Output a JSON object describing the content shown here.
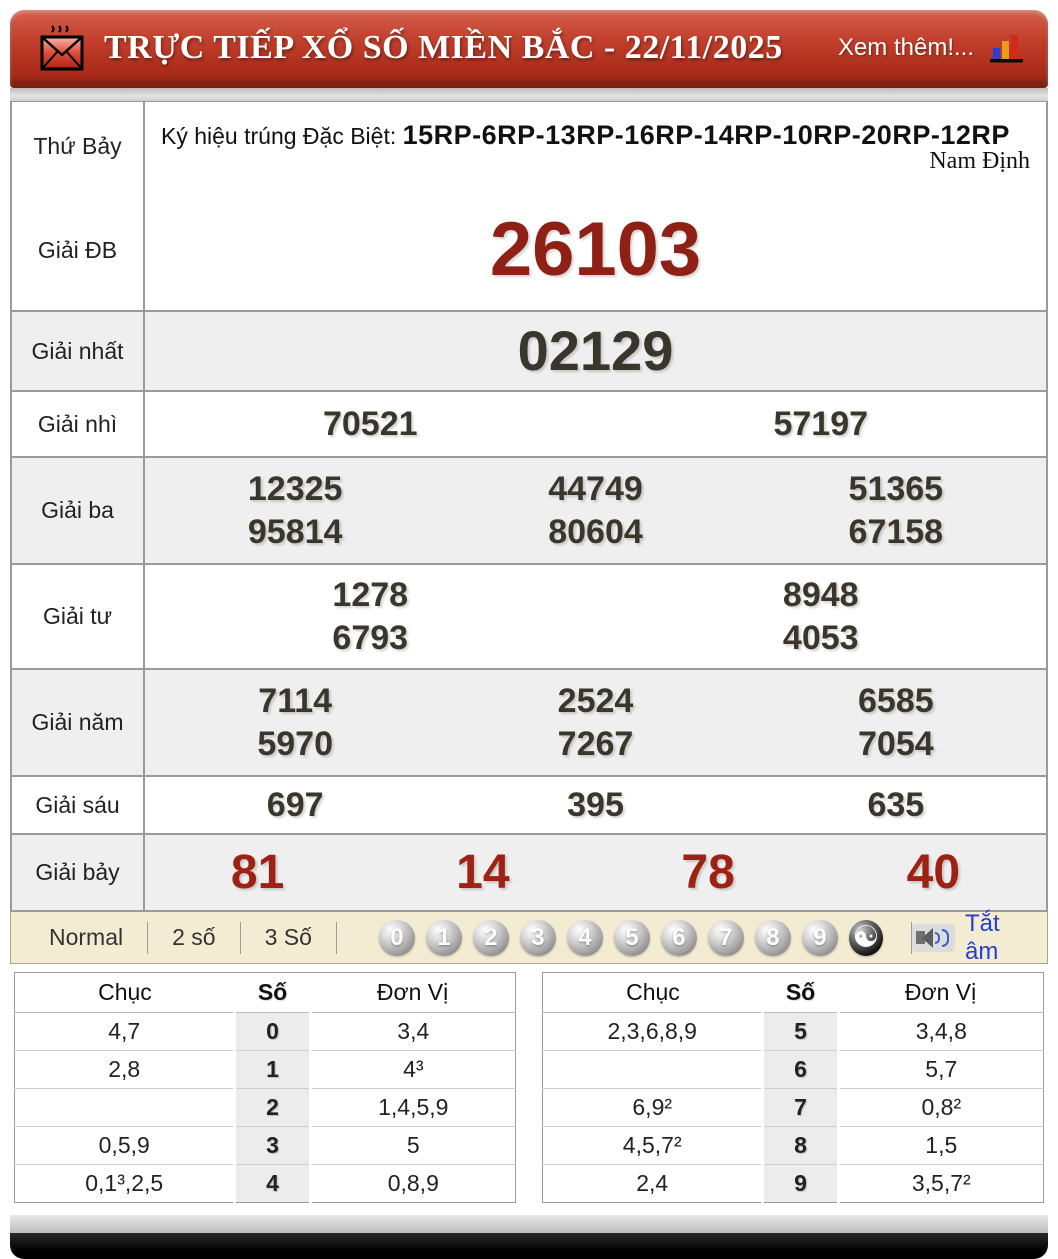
{
  "header": {
    "title": "TRỰC TIẾP XỔ SỐ MIỀN BẮC - 22/11/2025",
    "more_label": "Xem thêm!..."
  },
  "info": {
    "day": "Thứ Bảy",
    "symbol_label": "Ký hiệu trúng Đặc Biệt: ",
    "symbol_codes": "15RP-6RP-13RP-16RP-14RP-10RP-20RP-12RP",
    "province": "Nam Định"
  },
  "prizes": [
    {
      "id": "giai-db",
      "label": "Giải ĐB",
      "style": "special",
      "lines": [
        [
          "26103"
        ]
      ]
    },
    {
      "id": "giai-nhat",
      "label": "Giải nhất",
      "style": "first",
      "lines": [
        [
          "02129"
        ]
      ]
    },
    {
      "id": "giai-nhi",
      "label": "Giải nhì",
      "style": "normal",
      "lines": [
        [
          "70521",
          "57197"
        ]
      ]
    },
    {
      "id": "giai-ba",
      "label": "Giải ba",
      "style": "normal",
      "lines": [
        [
          "12325",
          "44749",
          "51365"
        ],
        [
          "95814",
          "80604",
          "67158"
        ]
      ]
    },
    {
      "id": "giai-tu",
      "label": "Giải tư",
      "style": "normal",
      "lines": [
        [
          "1278",
          "8948"
        ],
        [
          "6793",
          "4053"
        ]
      ]
    },
    {
      "id": "giai-nam",
      "label": "Giải năm",
      "style": "normal",
      "lines": [
        [
          "7114",
          "2524",
          "6585"
        ],
        [
          "5970",
          "7267",
          "7054"
        ]
      ]
    },
    {
      "id": "giai-sau",
      "label": "Giải sáu",
      "style": "normal",
      "lines": [
        [
          "697",
          "395",
          "635"
        ]
      ]
    },
    {
      "id": "giai-bay",
      "label": "Giải bảy",
      "style": "red",
      "lines": [
        [
          "81",
          "14",
          "78",
          "40"
        ]
      ]
    }
  ],
  "toolbar": {
    "modes": [
      "Normal",
      "2 số",
      "3 Số"
    ],
    "balls": [
      "0",
      "1",
      "2",
      "3",
      "4",
      "5",
      "6",
      "7",
      "8",
      "9"
    ],
    "yinyang_symbol": "☯",
    "mute_label": "Tắt âm"
  },
  "stats": {
    "col_headers": {
      "chuc": "Chục",
      "so": "Số",
      "donvi": "Đơn Vị"
    },
    "left_rows": [
      {
        "chuc": "4,7",
        "so": "0",
        "donvi": "3,4"
      },
      {
        "chuc": "2,8",
        "so": "1",
        "donvi": "4³"
      },
      {
        "chuc": "",
        "so": "2",
        "donvi": "1,4,5,9"
      },
      {
        "chuc": "0,5,9",
        "so": "3",
        "donvi": "5"
      },
      {
        "chuc": "0,1³,2,5",
        "so": "4",
        "donvi": "0,8,9"
      }
    ],
    "right_rows": [
      {
        "chuc": "2,3,6,8,9",
        "so": "5",
        "donvi": "3,4,8"
      },
      {
        "chuc": "",
        "so": "6",
        "donvi": "5,7"
      },
      {
        "chuc": "6,9²",
        "so": "7",
        "donvi": "0,8²"
      },
      {
        "chuc": "4,5,7²",
        "so": "8",
        "donvi": "1,5"
      },
      {
        "chuc": "2,4",
        "so": "9",
        "donvi": "3,5,7²"
      }
    ]
  },
  "colors": {
    "header_red_top": "#d5604d",
    "header_red_bottom": "#992413",
    "special_number_red": "#8e2016",
    "seventh_prize_red": "#9e2213",
    "number_dark": "#3a362c",
    "toolbar_cream": "#f4ecd2",
    "mute_blue": "#2440cc",
    "alt_row_gray": "#efefef"
  }
}
